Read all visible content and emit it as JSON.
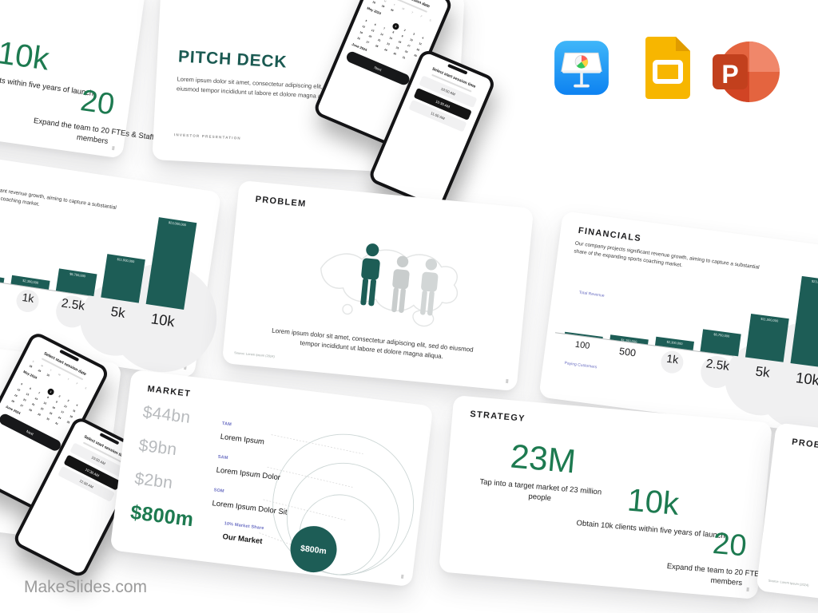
{
  "page": {
    "brand": "MakeSlides.com"
  },
  "icons": {
    "keynote": "keynote-app",
    "slides": "google-slides-app",
    "powerpoint": "powerpoint-app"
  },
  "slides": {
    "title": {
      "title": "PITCH DECK",
      "body": "Lorem ipsum dolor sit amet, consectetur adipiscing elit, sed do eiusmod tempor incididunt ut labore et dolore magna aliqua",
      "footer": "INVESTOR PRESENTATION",
      "phone_date": {
        "heading": "Select start session date",
        "weekdays": [
          "S",
          "M",
          "T",
          "W",
          "T",
          "F",
          "S"
        ],
        "prev_days": [
          "28",
          "29",
          "30"
        ],
        "month_current": "May 2024",
        "month_next": "June 2024",
        "first_weekday": 3,
        "days_in_month": 31,
        "selected_day": "1",
        "cta": "Next"
      },
      "phone_time": {
        "heading": "Select start session time",
        "options": [
          "10:00 AM",
          "10:30 AM",
          "11:00 AM"
        ],
        "selected_index": 1
      }
    },
    "problem": {
      "title": "PROBLEM",
      "body": "Lorem ipsum dolor sit amet, consectetur adipiscing elit, sed do eiusmod tempor incididunt ut labore et dolore magna aliqua.",
      "source": "Source: Lorem Ipsum (2024)"
    },
    "financials": {
      "title": "FINANCIALS",
      "body": "Our company projects significant revenue growth, aiming to capture a substantial share of the expanding sports coaching market.",
      "y_axis_label": "Total Revenue",
      "x_axis_label": "Paying Customers",
      "chart_data": {
        "type": "bar",
        "categories": [
          "100",
          "500",
          "1k",
          "2.5k",
          "5k",
          "10k"
        ],
        "values": [
          230000,
          1150000,
          2300000,
          5750000,
          11500000,
          23000000
        ],
        "value_labels": [
          "",
          "$1,150,000",
          "$2,300,000",
          "$5,750,000",
          "$11,500,000",
          "$23,000,000"
        ],
        "ylabel": "Total Revenue",
        "xlabel": "Paying Customers",
        "ylim": [
          0,
          23000000
        ],
        "bar_color": "#1d5d56"
      }
    },
    "market": {
      "title": "MARKET",
      "rows": [
        {
          "value": "$44bn",
          "tag": "TAM",
          "name": "Lorem Ipsum"
        },
        {
          "value": "$9bn",
          "tag": "SAM",
          "name": "Lorem Ipsum Dolor"
        },
        {
          "value": "$2bn",
          "tag": "SOM",
          "name": "Lorem Ipsum Dolor Sit"
        },
        {
          "value": "$800m",
          "tag": "10% Market Share",
          "name": "Our Market"
        }
      ],
      "bubble_label": "$800m"
    },
    "strategy": {
      "title": "STRATEGY",
      "stats": [
        {
          "value": "23M",
          "caption": "Tap into a target market of 23 million people"
        },
        {
          "value": "10k",
          "caption": "Obtain 10k clients within five years of launch"
        },
        {
          "value": "20",
          "caption": "Expand the team to 20 FTEs & Staff members"
        }
      ]
    }
  },
  "colors": {
    "teal": "#1d5d56",
    "green": "#1d7a50",
    "purple": "#6b6fc3",
    "gray_value": "#b8bbbe"
  }
}
